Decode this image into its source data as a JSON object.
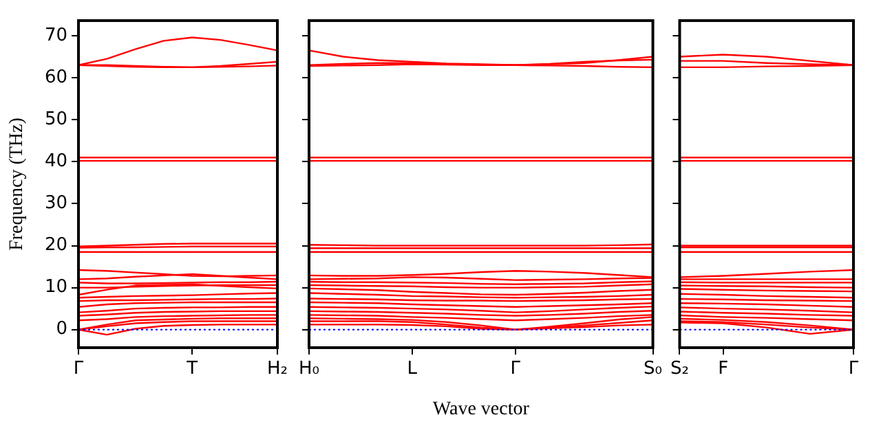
{
  "chart_data": [
    {
      "type": "line",
      "ylabel": "Frequency (THz)",
      "categories": [
        "Γ",
        null,
        null,
        null,
        "T",
        null,
        null,
        "H₂"
      ],
      "ylim": [
        -4.3,
        73.6
      ],
      "yticks": [
        0,
        10,
        20,
        30,
        40,
        50,
        60,
        70
      ],
      "marker": "none",
      "line_style": "solid",
      "grid": false,
      "legend": false,
      "ref_lines": [
        {
          "axis": "y",
          "value": 0,
          "color": "#0000ff",
          "line_style": "dotted"
        }
      ],
      "series": [
        {
          "color": "#ff0000",
          "values": [
            63,
            64.5,
            66.8,
            68.8,
            69.6,
            69,
            67.8,
            66.5
          ]
        },
        {
          "color": "#ff0000",
          "values": [
            63,
            62.8,
            62.6,
            62.5,
            62.5,
            62.6,
            62.7,
            62.9
          ]
        },
        {
          "color": "#ff0000",
          "values": [
            63,
            63,
            62.8,
            62.6,
            62.5,
            62.8,
            63.3,
            63.8
          ]
        },
        {
          "color": "#ff0000",
          "values": [
            41,
            41,
            41,
            41,
            41,
            41,
            41,
            41
          ]
        },
        {
          "color": "#ff0000",
          "values": [
            40.2,
            40.2,
            40.2,
            40.2,
            40.2,
            40.2,
            40.2,
            40.2
          ]
        },
        {
          "color": "#ff0000",
          "values": [
            19.8,
            20,
            20.2,
            20.4,
            20.5,
            20.5,
            20.5,
            20.5
          ]
        },
        {
          "color": "#ff0000",
          "values": [
            19.5,
            19.6,
            19.6,
            19.7,
            19.8,
            19.8,
            19.8,
            19.8
          ]
        },
        {
          "color": "#ff0000",
          "values": [
            18.5,
            18.5,
            18.5,
            18.5,
            18.5,
            18.5,
            18.5,
            18.5
          ]
        },
        {
          "color": "#ff0000",
          "values": [
            14.2,
            14,
            13.6,
            13.2,
            12.8,
            12.7,
            12.8,
            12.9
          ]
        },
        {
          "color": "#ff0000",
          "values": [
            12,
            12.2,
            12.6,
            12.9,
            13.2,
            12.8,
            12.4,
            12
          ]
        },
        {
          "color": "#ff0000",
          "values": [
            11.2,
            11,
            11,
            11.1,
            11.2,
            11.3,
            11.3,
            11.4
          ]
        },
        {
          "color": "#ff0000",
          "values": [
            10,
            10,
            10.2,
            10.4,
            10.5,
            10.6,
            10.6,
            10.6
          ]
        },
        {
          "color": "#ff0000",
          "values": [
            8.3,
            9.5,
            10.5,
            10.7,
            10.8,
            10.4,
            10.1,
            9.8
          ]
        },
        {
          "color": "#ff0000",
          "values": [
            7.6,
            7.8,
            8,
            8.1,
            8.2,
            8.4,
            8.6,
            8.7
          ]
        },
        {
          "color": "#ff0000",
          "values": [
            6.8,
            7,
            7,
            7.1,
            7.2,
            7.3,
            7.3,
            7.4
          ]
        },
        {
          "color": "#ff0000",
          "values": [
            5.4,
            6,
            6.3,
            6.4,
            6.5,
            6.5,
            6.5,
            6.5
          ]
        },
        {
          "color": "#ff0000",
          "values": [
            4.1,
            4.5,
            5,
            5.2,
            5.3,
            5.3,
            5.4,
            5.4
          ]
        },
        {
          "color": "#ff0000",
          "values": [
            3.3,
            3.6,
            4,
            4.2,
            4.3,
            4.4,
            4.4,
            4.4
          ]
        },
        {
          "color": "#ff0000",
          "values": [
            2.2,
            2.5,
            3,
            3.2,
            3.3,
            3.4,
            3.5,
            3.5
          ]
        },
        {
          "color": "#ff0000",
          "values": [
            0,
            1.2,
            2.2,
            2.4,
            2.6,
            2.7,
            2.7,
            2.7
          ]
        },
        {
          "color": "#ff0000",
          "values": [
            0,
            0.8,
            1.5,
            1.8,
            2,
            2,
            2,
            2
          ]
        },
        {
          "color": "#ff0000",
          "values": [
            0,
            -1.2,
            0.2,
            0.9,
            1.1,
            1.2,
            1.2,
            1.2
          ]
        }
      ]
    },
    {
      "type": "line",
      "xlabel": "Wave vector",
      "categories": [
        "H₀",
        null,
        null,
        "L",
        null,
        null,
        "Γ",
        null,
        null,
        null,
        "S₀"
      ],
      "ylim": [
        -4.3,
        73.6
      ],
      "yticks": [
        0,
        10,
        20,
        30,
        40,
        50,
        60,
        70
      ],
      "tick_labels": "x",
      "marker": "none",
      "line_style": "solid",
      "grid": false,
      "legend": false,
      "ref_lines": [
        {
          "axis": "y",
          "value": 0,
          "color": "#0000ff",
          "line_style": "dotted"
        }
      ],
      "series": [
        {
          "color": "#ff0000",
          "values": [
            66.5,
            65,
            64.2,
            63.8,
            63.4,
            63.2,
            63,
            63.2,
            63.5,
            64.2,
            65
          ]
        },
        {
          "color": "#ff0000",
          "values": [
            63,
            63.3,
            63.5,
            63.5,
            63.3,
            63.1,
            63,
            63.3,
            63.8,
            64.1,
            64.3
          ]
        },
        {
          "color": "#ff0000",
          "values": [
            62.8,
            62.9,
            63,
            63.2,
            63.1,
            63,
            63,
            62.9,
            62.8,
            62.6,
            62.5
          ]
        },
        {
          "color": "#ff0000",
          "values": [
            41,
            41,
            41,
            41,
            41,
            41,
            41,
            41,
            41,
            41,
            41
          ]
        },
        {
          "color": "#ff0000",
          "values": [
            40.2,
            40.2,
            40.2,
            40.2,
            40.2,
            40.2,
            40.2,
            40.2,
            40.2,
            40.2,
            40.2
          ]
        },
        {
          "color": "#ff0000",
          "values": [
            20.2,
            20.1,
            20,
            20,
            20,
            20,
            20,
            20,
            20,
            20.1,
            20.3
          ]
        },
        {
          "color": "#ff0000",
          "values": [
            19.4,
            19.4,
            19.4,
            19.4,
            19.4,
            19.4,
            19.4,
            19.4,
            19.4,
            19.4,
            19.4
          ]
        },
        {
          "color": "#ff0000",
          "values": [
            18.5,
            18.5,
            18.5,
            18.5,
            18.5,
            18.5,
            18.5,
            18.5,
            18.5,
            18.5,
            18.5
          ]
        },
        {
          "color": "#ff0000",
          "values": [
            12.9,
            12.8,
            12.8,
            13,
            13.3,
            13.7,
            14,
            13.8,
            13.5,
            13,
            12.5
          ]
        },
        {
          "color": "#ff0000",
          "values": [
            12,
            12.1,
            12.2,
            12.5,
            12.4,
            12.1,
            11.8,
            11.9,
            12,
            12.2,
            12.3
          ]
        },
        {
          "color": "#ff0000",
          "values": [
            11.4,
            11.3,
            11.3,
            11.2,
            11.1,
            10.9,
            10.8,
            10.9,
            11,
            11.3,
            11.5
          ]
        },
        {
          "color": "#ff0000",
          "values": [
            10.6,
            10.5,
            10.4,
            10.3,
            10.1,
            10,
            10,
            10.1,
            10.2,
            10.5,
            10.8
          ]
        },
        {
          "color": "#ff0000",
          "values": [
            9.8,
            9.6,
            9.4,
            9,
            8.7,
            8.4,
            8.3,
            8.5,
            8.8,
            9.2,
            9.5
          ]
        },
        {
          "color": "#ff0000",
          "values": [
            8.7,
            8.5,
            8.3,
            8,
            7.9,
            7.7,
            7.6,
            7.7,
            7.8,
            8,
            8.3
          ]
        },
        {
          "color": "#ff0000",
          "values": [
            7.4,
            7.3,
            7.2,
            7,
            6.9,
            6.9,
            6.8,
            6.9,
            7,
            7.2,
            7.3
          ]
        },
        {
          "color": "#ff0000",
          "values": [
            6.5,
            6.4,
            6.3,
            6,
            5.8,
            5.6,
            5.4,
            5.6,
            5.8,
            6,
            6.3
          ]
        },
        {
          "color": "#ff0000",
          "values": [
            5.4,
            5.3,
            5.2,
            5,
            4.8,
            4.5,
            4.1,
            4.4,
            4.8,
            5.2,
            5.5
          ]
        },
        {
          "color": "#ff0000",
          "values": [
            4.4,
            4.3,
            4.2,
            4,
            3.8,
            3.5,
            3.3,
            3.5,
            3.8,
            4.2,
            4.5
          ]
        },
        {
          "color": "#ff0000",
          "values": [
            3.5,
            3.4,
            3.3,
            3,
            2.8,
            2.5,
            2.2,
            2.5,
            2.8,
            3.2,
            3.5
          ]
        },
        {
          "color": "#ff0000",
          "values": [
            2.7,
            2.6,
            2.5,
            2.3,
            1.8,
            1,
            0,
            0.7,
            1.5,
            2.4,
            3
          ]
        },
        {
          "color": "#ff0000",
          "values": [
            2,
            2,
            2,
            1.8,
            1.2,
            0.5,
            0,
            0.5,
            1,
            1.6,
            2.2
          ]
        },
        {
          "color": "#ff0000",
          "values": [
            1.2,
            1.2,
            1.2,
            1.1,
            0.8,
            0.2,
            0,
            0.3,
            0.6,
            1,
            1.2
          ]
        }
      ]
    },
    {
      "type": "line",
      "categories": [
        "S₂",
        "F",
        null,
        null,
        "Γ"
      ],
      "ylim": [
        -4.3,
        73.6
      ],
      "yticks": [
        0,
        10,
        20,
        30,
        40,
        50,
        60,
        70
      ],
      "tick_labels": "x",
      "marker": "none",
      "line_style": "solid",
      "grid": false,
      "legend": false,
      "ref_lines": [
        {
          "axis": "y",
          "value": 0,
          "color": "#0000ff",
          "line_style": "dotted"
        }
      ],
      "series": [
        {
          "color": "#ff0000",
          "values": [
            65,
            65.5,
            65,
            64,
            63
          ]
        },
        {
          "color": "#ff0000",
          "values": [
            64,
            64,
            63.5,
            63.2,
            63
          ]
        },
        {
          "color": "#ff0000",
          "values": [
            62.5,
            62.5,
            62.7,
            62.8,
            63
          ]
        },
        {
          "color": "#ff0000",
          "values": [
            41,
            41,
            41,
            41,
            41
          ]
        },
        {
          "color": "#ff0000",
          "values": [
            40.2,
            40.2,
            40.2,
            40.2,
            40.2
          ]
        },
        {
          "color": "#ff0000",
          "values": [
            20,
            20,
            20,
            20,
            20
          ]
        },
        {
          "color": "#ff0000",
          "values": [
            19.6,
            19.6,
            19.6,
            19.6,
            19.6
          ]
        },
        {
          "color": "#ff0000",
          "values": [
            18.5,
            18.5,
            18.5,
            18.5,
            18.5
          ]
        },
        {
          "color": "#ff0000",
          "values": [
            12.5,
            12.8,
            13.3,
            13.8,
            14.2
          ]
        },
        {
          "color": "#ff0000",
          "values": [
            12,
            12,
            12,
            12,
            12
          ]
        },
        {
          "color": "#ff0000",
          "values": [
            11.3,
            11.2,
            11.2,
            11.2,
            11.2
          ]
        },
        {
          "color": "#ff0000",
          "values": [
            10.5,
            10.4,
            10.3,
            10.1,
            10
          ]
        },
        {
          "color": "#ff0000",
          "values": [
            9.7,
            9.5,
            9.3,
            9.2,
            9.1
          ]
        },
        {
          "color": "#ff0000",
          "values": [
            8.5,
            8.3,
            8,
            7.8,
            7.6
          ]
        },
        {
          "color": "#ff0000",
          "values": [
            7.3,
            7.2,
            7,
            6.9,
            6.8
          ]
        },
        {
          "color": "#ff0000",
          "values": [
            6.3,
            6.2,
            6,
            5.7,
            5.4
          ]
        },
        {
          "color": "#ff0000",
          "values": [
            5.3,
            5,
            4.8,
            4.5,
            4.1
          ]
        },
        {
          "color": "#ff0000",
          "values": [
            4.3,
            4,
            3.8,
            3.5,
            3.3
          ]
        },
        {
          "color": "#ff0000",
          "values": [
            3.4,
            3,
            2.8,
            2.5,
            2.2
          ]
        },
        {
          "color": "#ff0000",
          "values": [
            2.6,
            2.3,
            1.8,
            1,
            0
          ]
        },
        {
          "color": "#ff0000",
          "values": [
            2,
            1.8,
            1.2,
            0.5,
            0
          ]
        },
        {
          "color": "#ff0000",
          "values": [
            1.7,
            1.5,
            0.5,
            -1,
            0
          ]
        }
      ]
    }
  ]
}
